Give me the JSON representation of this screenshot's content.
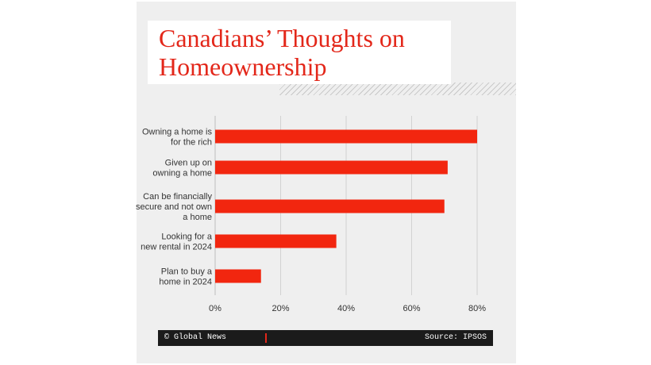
{
  "chart_data": {
    "type": "bar",
    "orientation": "horizontal",
    "title": "Canadians’ Thoughts on Homeownership",
    "categories": [
      [
        "Owning a home is",
        "for the rich"
      ],
      [
        "Given up on",
        "owning a home"
      ],
      [
        "Can be financially",
        "secure and not own",
        "a home"
      ],
      [
        "Looking for a",
        "new rental in 2024"
      ],
      [
        "Plan to buy a",
        "home in 2024"
      ]
    ],
    "values": [
      80,
      71,
      70,
      37,
      14
    ],
    "xlim": [
      0,
      80
    ],
    "xticks": [
      0,
      20,
      40,
      60,
      80
    ],
    "tick_suffix": "%",
    "grid": true,
    "bar_color": "#f2260f",
    "title_color": "#e3271a"
  },
  "footer": {
    "credit": "© Global News",
    "source": "Source: IPSOS"
  }
}
